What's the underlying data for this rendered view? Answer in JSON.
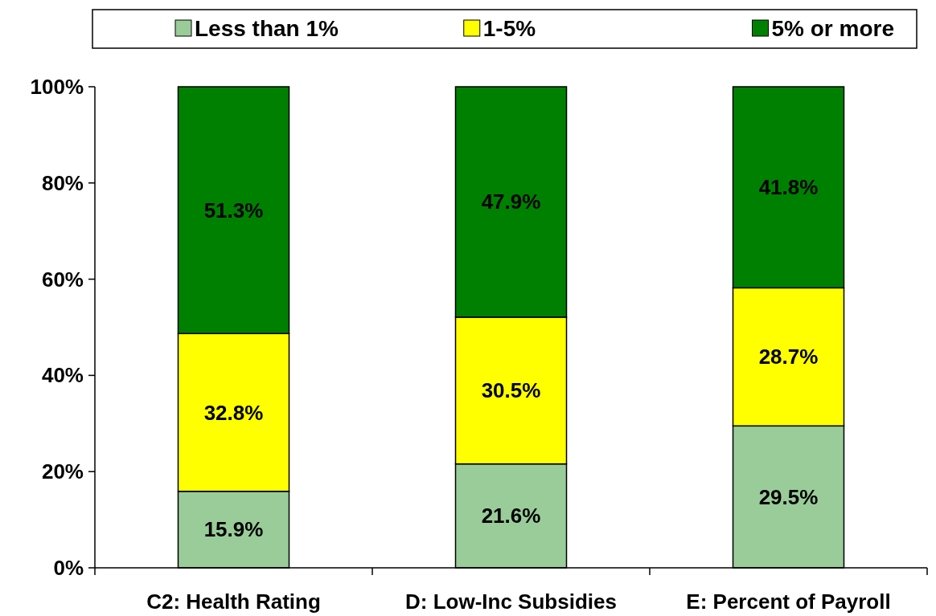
{
  "chart_data": {
    "type": "bar",
    "stacked": true,
    "categories": [
      "C2: Health Rating",
      "D: Low-Inc Subsidies",
      "E: Percent of Payroll"
    ],
    "series": [
      {
        "name": "Less than 1%",
        "color": "#99cc99",
        "values": [
          15.9,
          21.6,
          29.5
        ],
        "value_labels": [
          "15.9%",
          "21.6%",
          "29.5%"
        ]
      },
      {
        "name": "1-5%",
        "color": "#ffff00",
        "values": [
          32.8,
          30.5,
          28.7
        ],
        "value_labels": [
          "32.8%",
          "30.5%",
          "28.7%"
        ]
      },
      {
        "name": "5% or more",
        "color": "#008000",
        "values": [
          51.3,
          47.9,
          41.8
        ],
        "value_labels": [
          "51.3%",
          "47.9%",
          "41.8%"
        ]
      }
    ],
    "ylim": [
      0,
      100
    ],
    "yticks": [
      {
        "value": 0,
        "label": "0%"
      },
      {
        "value": 20,
        "label": "20%"
      },
      {
        "value": 40,
        "label": "40%"
      },
      {
        "value": 60,
        "label": "60%"
      },
      {
        "value": 80,
        "label": "80%"
      },
      {
        "value": 100,
        "label": "100%"
      }
    ],
    "legend": "top",
    "grid": false
  }
}
